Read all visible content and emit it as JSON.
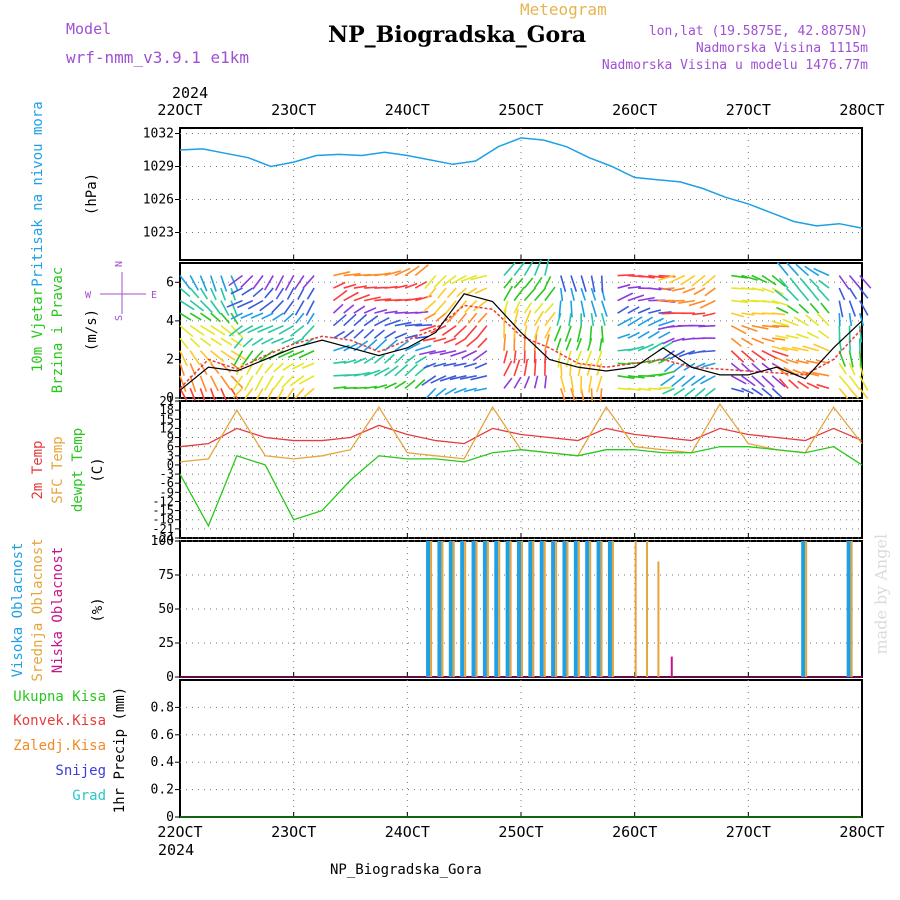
{
  "header": {
    "model_label": "Model",
    "model_name": "wrf-nmm_v3.9.1 e1km",
    "meteogram_label": "Meteogram",
    "station_name": "NP_Biogradska_Gora",
    "lonlat": "lon,lat (19.5875E, 42.8875N)",
    "elevation": "Nadmorska Visina 1115m",
    "model_elevation": "Nadmorska Visina u modelu 1476.77m",
    "year": "2024",
    "footer_station": "NP_Biogradska_Gora",
    "signature": "made by Angel"
  },
  "colors": {
    "pressure": "#1ea0e6",
    "t2m": "#e63c3c",
    "sfc": "#e6a53c",
    "dewpt": "#28c81e",
    "high_cloud": "#1ea0e6",
    "mid_cloud": "#e6a53c",
    "low_cloud": "#c8148c",
    "header_purple": "#a050d2",
    "header_orange": "#e6b450",
    "kisa_green": "#28c81e",
    "konvek_red": "#e63c3c",
    "zaledj_orange": "#f08c28",
    "snijeg_blue": "#3c3cdc",
    "grad_cyan": "#28c8c8"
  },
  "chart_data": [
    {
      "type": "line",
      "panel": "pressure",
      "ylabel": "Pritisak na nivou mora",
      "unit": "(hPa)",
      "x_ticks": [
        "22OCT",
        "23OCT",
        "24OCT",
        "25OCT",
        "26OCT",
        "27OCT",
        "28OCT"
      ],
      "ylim": [
        1020.5,
        1032.5
      ],
      "y_ticks": [
        1023,
        1026,
        1029,
        1032
      ],
      "grid": true,
      "x": [
        0,
        0.2,
        0.4,
        0.6,
        0.8,
        1.0,
        1.2,
        1.4,
        1.6,
        1.8,
        2.0,
        2.2,
        2.4,
        2.6,
        2.8,
        3.0,
        3.2,
        3.4,
        3.6,
        3.8,
        4.0,
        4.2,
        4.4,
        4.6,
        4.8,
        5.0,
        5.2,
        5.4,
        5.6,
        5.8,
        6.0
      ],
      "series": [
        {
          "values": [
            1030.5,
            1030.6,
            1030.2,
            1029.8,
            1029.0,
            1029.4,
            1030.0,
            1030.1,
            1030.0,
            1030.3,
            1030.0,
            1029.6,
            1029.2,
            1029.5,
            1030.8,
            1031.6,
            1031.4,
            1030.8,
            1029.8,
            1029.0,
            1028.0,
            1027.8,
            1027.6,
            1027.0,
            1026.2,
            1025.6,
            1024.8,
            1024.0,
            1023.6,
            1023.8,
            1023.4
          ]
        }
      ]
    },
    {
      "type": "line",
      "panel": "wind",
      "ylabel": "10m Vjetar Brzina i Pravac",
      "unit": "(m/s)",
      "compass": {
        "north": "N",
        "west": "W",
        "east": "E",
        "south": "S"
      },
      "ylim": [
        0,
        7
      ],
      "y_ticks": [
        0,
        2,
        4,
        6
      ],
      "grid": true,
      "x": [
        0,
        0.25,
        0.5,
        0.75,
        1.0,
        1.25,
        1.5,
        1.75,
        2.0,
        2.25,
        2.5,
        2.75,
        3.0,
        3.25,
        3.5,
        3.75,
        4.0,
        4.25,
        4.5,
        4.75,
        5.0,
        5.25,
        5.5,
        5.75,
        6.0
      ],
      "series": [
        {
          "name": "speed",
          "values": [
            0.5,
            2.0,
            1.5,
            2.2,
            2.8,
            3.2,
            3.0,
            2.4,
            3.0,
            3.6,
            4.8,
            4.6,
            3.2,
            2.6,
            1.8,
            1.6,
            1.8,
            2.0,
            1.6,
            1.5,
            1.4,
            1.3,
            1.2,
            2.0,
            3.6
          ]
        },
        {
          "name": "gust",
          "values": [
            0.4,
            1.6,
            1.4,
            2.0,
            2.6,
            3.0,
            2.6,
            2.2,
            2.6,
            3.4,
            5.4,
            5.0,
            3.4,
            2.0,
            1.6,
            1.4,
            1.6,
            2.6,
            1.6,
            1.2,
            1.2,
            1.6,
            1.0,
            2.6,
            4.0
          ]
        }
      ]
    },
    {
      "type": "line",
      "panel": "temperature",
      "ylabel_t2m": "2m Temp",
      "ylabel_sfc": "SFC Temp",
      "ylabel_dew": "dewpt Temp",
      "unit": "(C)",
      "ylim": [
        -24,
        21
      ],
      "y_ticks": [
        -24,
        -21,
        -18,
        -15,
        -12,
        -9,
        -6,
        -3,
        0,
        3,
        6,
        9,
        12,
        15,
        18,
        21
      ],
      "grid": true,
      "x": [
        0,
        0.25,
        0.5,
        0.75,
        1.0,
        1.25,
        1.5,
        1.75,
        2.0,
        2.25,
        2.5,
        2.75,
        3.0,
        3.25,
        3.5,
        3.75,
        4.0,
        4.25,
        4.5,
        4.75,
        5.0,
        5.25,
        5.5,
        5.75,
        6.0
      ],
      "series": [
        {
          "name": "2m Temp",
          "values": [
            6,
            7,
            12,
            9,
            8,
            8,
            9,
            13,
            10,
            8,
            7,
            12,
            10,
            9,
            8,
            12,
            10,
            9,
            8,
            12,
            10,
            9,
            8,
            12,
            8
          ]
        },
        {
          "name": "SFC Temp",
          "values": [
            1,
            2,
            18,
            3,
            2,
            3,
            5,
            19,
            4,
            3,
            2,
            19,
            5,
            4,
            3,
            19,
            6,
            5,
            4,
            20,
            7,
            5,
            4,
            19,
            7
          ]
        },
        {
          "name": "dewpt Temp",
          "values": [
            -3,
            -20,
            3,
            0,
            -18,
            -15,
            -5,
            3,
            2,
            2,
            1,
            4,
            5,
            4,
            3,
            5,
            5,
            4,
            4,
            6,
            6,
            5,
            4,
            6,
            0
          ]
        }
      ]
    },
    {
      "type": "bar",
      "panel": "clouds",
      "ylabel_high": "Visoka Oblacnost",
      "ylabel_mid": "Srednja Oblacnost",
      "ylabel_low": "Niska Oblacnost",
      "unit": "(%)",
      "ylim": [
        0,
        100
      ],
      "y_ticks": [
        0,
        25,
        50,
        75,
        100
      ],
      "grid": true,
      "x": [
        2.2,
        2.3,
        2.4,
        2.5,
        2.6,
        2.7,
        2.8,
        2.9,
        3.0,
        3.1,
        3.2,
        3.3,
        3.4,
        3.5,
        3.6,
        3.7,
        3.8,
        4.0,
        4.1,
        4.2,
        4.3,
        5.5,
        5.9
      ],
      "series": [
        {
          "name": "high",
          "values": [
            100,
            100,
            100,
            100,
            100,
            100,
            100,
            100,
            100,
            100,
            100,
            100,
            100,
            100,
            100,
            100,
            100,
            0,
            0,
            0,
            0,
            100,
            100
          ]
        },
        {
          "name": "mid",
          "values": [
            100,
            100,
            100,
            100,
            100,
            100,
            100,
            100,
            100,
            100,
            100,
            100,
            100,
            100,
            100,
            100,
            100,
            100,
            100,
            85,
            0,
            100,
            100
          ]
        },
        {
          "name": "low",
          "values": [
            0,
            0,
            0,
            0,
            0,
            0,
            0,
            0,
            0,
            0,
            0,
            0,
            0,
            0,
            0,
            0,
            0,
            0,
            0,
            0,
            15,
            0,
            0
          ]
        }
      ]
    },
    {
      "type": "line",
      "panel": "precip",
      "ylabel": "1hr Precip (mm)",
      "legend": [
        "Ukupna Kisa",
        "Konvek.Kisa",
        "Zaledj.Kisa",
        "Snijeg",
        "Grad"
      ],
      "ylim": [
        0,
        1
      ],
      "y_ticks": [
        0,
        0.2,
        0.4,
        0.6,
        0.8
      ],
      "grid": true,
      "x": [
        0,
        6
      ],
      "series": [
        {
          "name": "Ukupna Kisa",
          "values": [
            0,
            0
          ]
        }
      ]
    }
  ]
}
